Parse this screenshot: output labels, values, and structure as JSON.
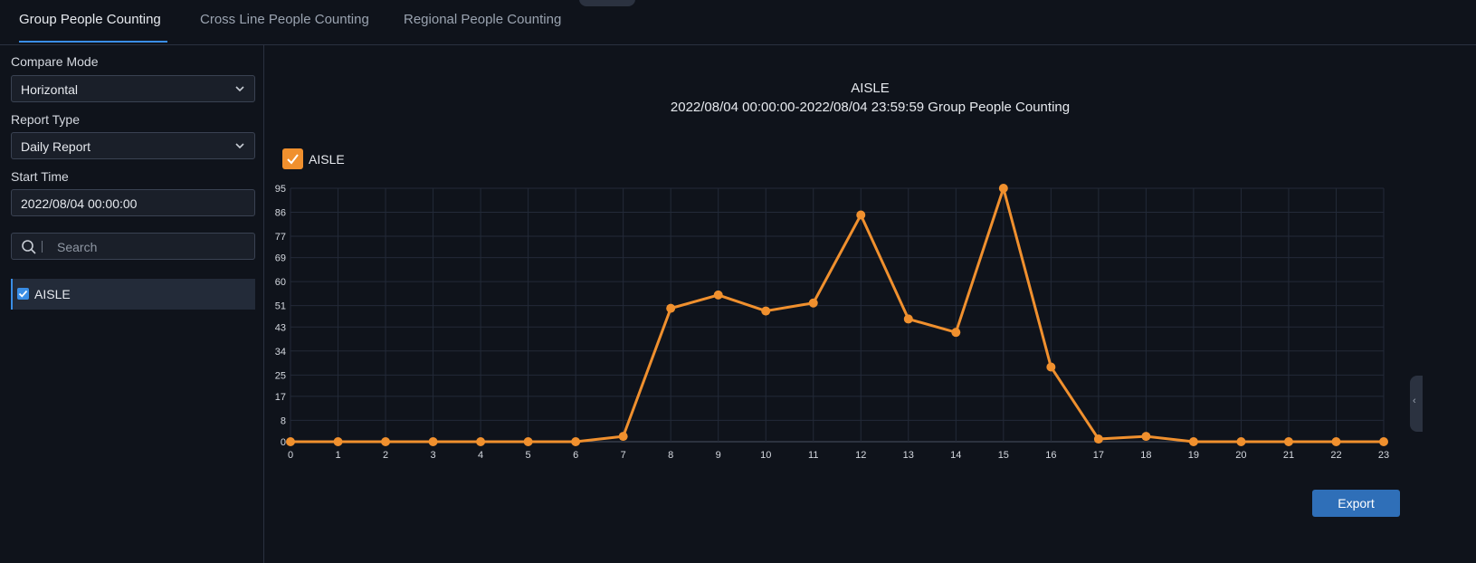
{
  "tabs": [
    {
      "label": "Group People Counting",
      "active": true
    },
    {
      "label": "Cross Line People Counting",
      "active": false
    },
    {
      "label": "Regional People Counting",
      "active": false
    }
  ],
  "icons": {
    "collapse": "chevron-up-icon",
    "search": "search-icon",
    "select": "chevron-down-icon",
    "expand": "chevron-left-icon"
  },
  "sidebar": {
    "compare_mode": {
      "label": "Compare Mode",
      "value": "Horizontal"
    },
    "report_type": {
      "label": "Report Type",
      "value": "Daily Report"
    },
    "start_time": {
      "label": "Start Time",
      "value": "2022/08/04 00:00:00"
    },
    "search": {
      "placeholder": "Search"
    },
    "items": [
      {
        "label": "AISLE",
        "checked": true
      }
    ]
  },
  "main": {
    "title": "AISLE",
    "subtitle": "2022/08/04 00:00:00-2022/08/04 23:59:59 Group People Counting",
    "legend": [
      {
        "label": "AISLE",
        "checked": true
      }
    ],
    "export_label": "Export"
  },
  "colors": {
    "accent": "#3a8ee6",
    "series": "#f0902e",
    "background": "#0f131b",
    "grid": "#232a38",
    "button": "#2f6fb8"
  },
  "chart_data": {
    "type": "line",
    "title": "AISLE",
    "subtitle": "2022/08/04 00:00:00-2022/08/04 23:59:59 Group People Counting",
    "categories": [
      "0",
      "1",
      "2",
      "3",
      "4",
      "5",
      "6",
      "7",
      "8",
      "9",
      "10",
      "11",
      "12",
      "13",
      "14",
      "15",
      "16",
      "17",
      "18",
      "19",
      "20",
      "21",
      "22",
      "23"
    ],
    "y_ticks": [
      0,
      8,
      17,
      25,
      34,
      43,
      51,
      60,
      69,
      77,
      86,
      95
    ],
    "ylim": [
      0,
      95
    ],
    "grid": true,
    "legend_position": "top-left",
    "series": [
      {
        "name": "AISLE",
        "color": "#f0902e",
        "values": [
          0,
          0,
          0,
          0,
          0,
          0,
          0,
          2,
          50,
          55,
          49,
          52,
          85,
          46,
          41,
          95,
          28,
          1,
          2,
          0,
          0,
          0,
          0,
          0
        ]
      }
    ]
  }
}
